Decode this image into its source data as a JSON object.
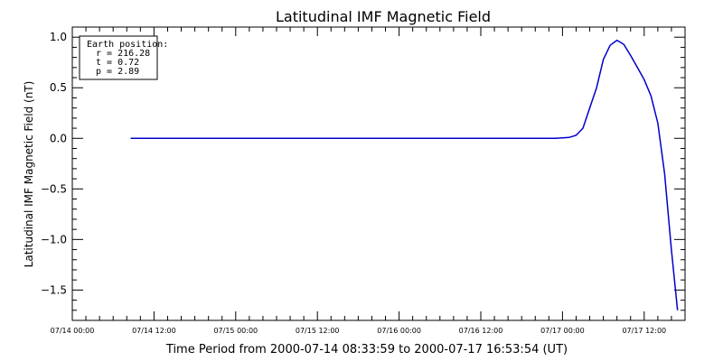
{
  "chart_data": {
    "type": "line",
    "title": "Latitudinal IMF Magnetic Field",
    "ylabel": "Latitudinal IMF Magnetic Field (nT)",
    "xlabel": "Time Period from 2000-07-14 08:33:59 to 2000-07-17 16:53:54 (UT)",
    "x_tick_labels": [
      "07/14 00:00",
      "07/14 12:00",
      "07/15 00:00",
      "07/15 12:00",
      "07/16 00:00",
      "07/16 12:00",
      "07/17 00:00",
      "07/17 12:00"
    ],
    "y_tick_labels": [
      "1.0",
      "0.5",
      "0.0",
      "−0.5",
      "−1.0",
      "−1.5"
    ],
    "ylim": [
      -1.8,
      1.1
    ],
    "xlim_hours_since_0714_0000": [
      0,
      90
    ],
    "grid": false,
    "series": [
      {
        "color": "#0000cc",
        "points": [
          {
            "x": "07/14 08:34",
            "y": 0.0
          },
          {
            "x": "07/16 23:00",
            "y": 0.0
          },
          {
            "x": "07/17 00:00",
            "y": 0.005
          },
          {
            "x": "07/17 01:00",
            "y": 0.01
          },
          {
            "x": "07/17 02:00",
            "y": 0.03
          },
          {
            "x": "07/17 03:00",
            "y": 0.1
          },
          {
            "x": "07/17 04:00",
            "y": 0.3
          },
          {
            "x": "07/17 05:00",
            "y": 0.5
          },
          {
            "x": "07/17 06:00",
            "y": 0.78
          },
          {
            "x": "07/17 07:00",
            "y": 0.92
          },
          {
            "x": "07/17 08:00",
            "y": 0.97
          },
          {
            "x": "07/17 09:00",
            "y": 0.93
          },
          {
            "x": "07/17 10:00",
            "y": 0.82
          },
          {
            "x": "07/17 11:00",
            "y": 0.7
          },
          {
            "x": "07/17 12:00",
            "y": 0.58
          },
          {
            "x": "07/17 13:00",
            "y": 0.42
          },
          {
            "x": "07/17 14:00",
            "y": 0.15
          },
          {
            "x": "07/17 15:00",
            "y": -0.35
          },
          {
            "x": "07/17 16:00",
            "y": -1.1
          },
          {
            "x": "07/17 16:54",
            "y": -1.7
          }
        ]
      }
    ],
    "legend": {
      "placement": "top-left",
      "lines": [
        "Earth position:",
        "r = 216.28",
        "t = 0.72",
        "p = 2.89"
      ]
    }
  }
}
